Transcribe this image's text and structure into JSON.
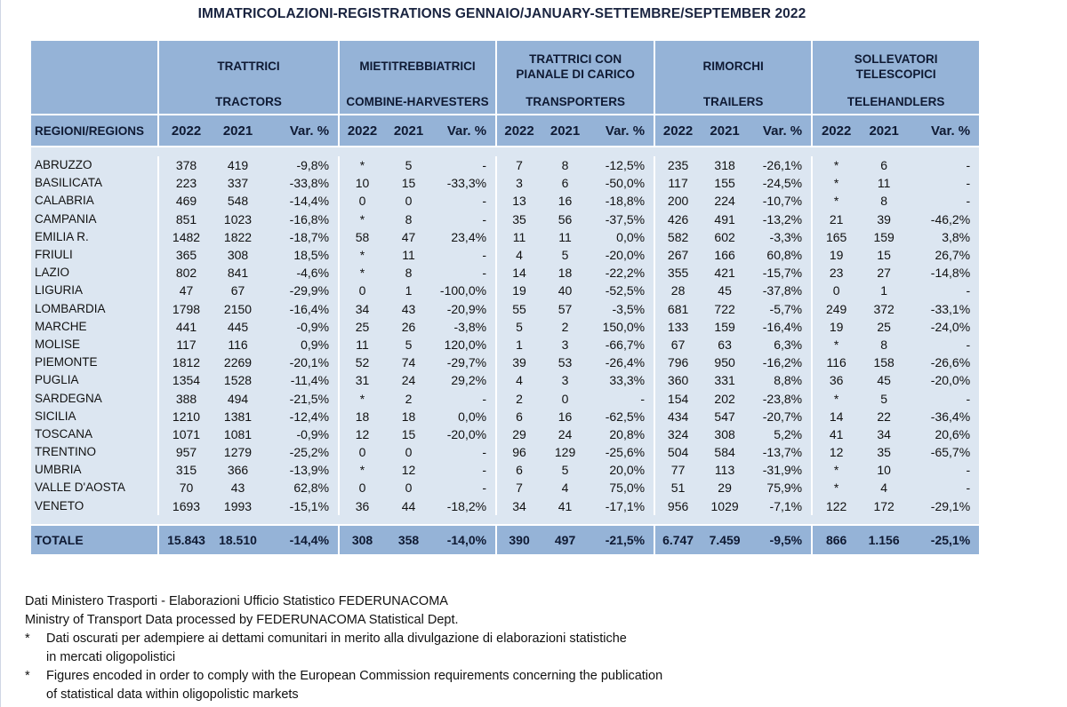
{
  "title": "IMMATRICOLAZIONI-REGISTRATIONS GENNAIO/JANUARY-SETTEMBRE/SEPTEMBER 2022",
  "groups": [
    {
      "it": "TRATTRICI",
      "en": "TRACTORS"
    },
    {
      "it": "MIETITREBBIATRICI",
      "en": "COMBINE-HARVESTERS"
    },
    {
      "it": "TRATTRICI CON PIANALE DI CARICO",
      "en": "TRANSPORTERS"
    },
    {
      "it": "RIMORCHI",
      "en": "TRAILERS"
    },
    {
      "it": "SOLLEVATORI TELESCOPICI",
      "en": "TELEHANDLERS"
    }
  ],
  "subheader": {
    "region": "REGIONI/REGIONS",
    "y1": "2022",
    "y2": "2021",
    "var": "Var. %"
  },
  "rows": [
    {
      "region": "ABRUZZO",
      "v": [
        "378",
        "419",
        "-9,8%",
        "*",
        "5",
        "-",
        "7",
        "8",
        "-12,5%",
        "235",
        "318",
        "-26,1%",
        "*",
        "6",
        "-"
      ]
    },
    {
      "region": "BASILICATA",
      "v": [
        "223",
        "337",
        "-33,8%",
        "10",
        "15",
        "-33,3%",
        "3",
        "6",
        "-50,0%",
        "117",
        "155",
        "-24,5%",
        "*",
        "11",
        "-"
      ]
    },
    {
      "region": "CALABRIA",
      "v": [
        "469",
        "548",
        "-14,4%",
        "0",
        "0",
        "-",
        "13",
        "16",
        "-18,8%",
        "200",
        "224",
        "-10,7%",
        "*",
        "8",
        "-"
      ]
    },
    {
      "region": "CAMPANIA",
      "v": [
        "851",
        "1023",
        "-16,8%",
        "*",
        "8",
        "-",
        "35",
        "56",
        "-37,5%",
        "426",
        "491",
        "-13,2%",
        "21",
        "39",
        "-46,2%"
      ]
    },
    {
      "region": "EMILIA R.",
      "v": [
        "1482",
        "1822",
        "-18,7%",
        "58",
        "47",
        "23,4%",
        "11",
        "11",
        "0,0%",
        "582",
        "602",
        "-3,3%",
        "165",
        "159",
        "3,8%"
      ]
    },
    {
      "region": "FRIULI",
      "v": [
        "365",
        "308",
        "18,5%",
        "*",
        "11",
        "-",
        "4",
        "5",
        "-20,0%",
        "267",
        "166",
        "60,8%",
        "19",
        "15",
        "26,7%"
      ]
    },
    {
      "region": "LAZIO",
      "v": [
        "802",
        "841",
        "-4,6%",
        "*",
        "8",
        "-",
        "14",
        "18",
        "-22,2%",
        "355",
        "421",
        "-15,7%",
        "23",
        "27",
        "-14,8%"
      ]
    },
    {
      "region": "LIGURIA",
      "v": [
        "47",
        "67",
        "-29,9%",
        "0",
        "1",
        "-100,0%",
        "19",
        "40",
        "-52,5%",
        "28",
        "45",
        "-37,8%",
        "0",
        "1",
        "-"
      ]
    },
    {
      "region": "LOMBARDIA",
      "v": [
        "1798",
        "2150",
        "-16,4%",
        "34",
        "43",
        "-20,9%",
        "55",
        "57",
        "-3,5%",
        "681",
        "722",
        "-5,7%",
        "249",
        "372",
        "-33,1%"
      ]
    },
    {
      "region": "MARCHE",
      "v": [
        "441",
        "445",
        "-0,9%",
        "25",
        "26",
        "-3,8%",
        "5",
        "2",
        "150,0%",
        "133",
        "159",
        "-16,4%",
        "19",
        "25",
        "-24,0%"
      ]
    },
    {
      "region": "MOLISE",
      "v": [
        "117",
        "116",
        "0,9%",
        "11",
        "5",
        "120,0%",
        "1",
        "3",
        "-66,7%",
        "67",
        "63",
        "6,3%",
        "*",
        "8",
        "-"
      ]
    },
    {
      "region": "PIEMONTE",
      "v": [
        "1812",
        "2269",
        "-20,1%",
        "52",
        "74",
        "-29,7%",
        "39",
        "53",
        "-26,4%",
        "796",
        "950",
        "-16,2%",
        "116",
        "158",
        "-26,6%"
      ]
    },
    {
      "region": "PUGLIA",
      "v": [
        "1354",
        "1528",
        "-11,4%",
        "31",
        "24",
        "29,2%",
        "4",
        "3",
        "33,3%",
        "360",
        "331",
        "8,8%",
        "36",
        "45",
        "-20,0%"
      ]
    },
    {
      "region": "SARDEGNA",
      "v": [
        "388",
        "494",
        "-21,5%",
        "*",
        "2",
        "-",
        "2",
        "0",
        "-",
        "154",
        "202",
        "-23,8%",
        "*",
        "5",
        "-"
      ]
    },
    {
      "region": "SICILIA",
      "v": [
        "1210",
        "1381",
        "-12,4%",
        "18",
        "18",
        "0,0%",
        "6",
        "16",
        "-62,5%",
        "434",
        "547",
        "-20,7%",
        "14",
        "22",
        "-36,4%"
      ]
    },
    {
      "region": "TOSCANA",
      "v": [
        "1071",
        "1081",
        "-0,9%",
        "12",
        "15",
        "-20,0%",
        "29",
        "24",
        "20,8%",
        "324",
        "308",
        "5,2%",
        "41",
        "34",
        "20,6%"
      ]
    },
    {
      "region": "TRENTINO",
      "v": [
        "957",
        "1279",
        "-25,2%",
        "0",
        "0",
        "-",
        "96",
        "129",
        "-25,6%",
        "504",
        "584",
        "-13,7%",
        "12",
        "35",
        "-65,7%"
      ]
    },
    {
      "region": "UMBRIA",
      "v": [
        "315",
        "366",
        "-13,9%",
        "*",
        "12",
        "-",
        "6",
        "5",
        "20,0%",
        "77",
        "113",
        "-31,9%",
        "*",
        "10",
        "-"
      ]
    },
    {
      "region": "VALLE D'AOSTA",
      "v": [
        "70",
        "43",
        "62,8%",
        "0",
        "0",
        "-",
        "7",
        "4",
        "75,0%",
        "51",
        "29",
        "75,9%",
        "*",
        "4",
        "-"
      ]
    },
    {
      "region": "VENETO",
      "v": [
        "1693",
        "1993",
        "-15,1%",
        "36",
        "44",
        "-18,2%",
        "34",
        "41",
        "-17,1%",
        "956",
        "1029",
        "-7,1%",
        "122",
        "172",
        "-29,1%"
      ]
    }
  ],
  "total": {
    "region": "TOTALE",
    "v": [
      "15.843",
      "18.510",
      "-14,4%",
      "308",
      "358",
      "-14,0%",
      "390",
      "497",
      "-21,5%",
      "6.747",
      "7.459",
      "-9,5%",
      "866",
      "1.156",
      "-25,1%"
    ]
  },
  "notes": {
    "line1": "Dati Ministero Trasporti - Elaborazioni Ufficio Statistico FEDERUNACOMA",
    "line2": "Ministry of Transport Data processed by FEDERUNACOMA Statistical Dept.",
    "star": "*",
    "it_a": "Dati oscurati per adempiere ai dettami comunitari in merito alla divulgazione di elaborazioni statistiche",
    "it_b": "in mercati oligopolistici",
    "en_a": "Figures encoded in order to comply with the European Commission requirements concerning the publication",
    "en_b": "of statistical data within oligopolistic markets"
  }
}
